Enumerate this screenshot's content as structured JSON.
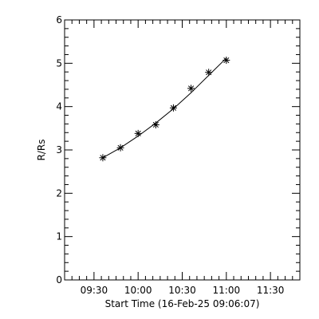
{
  "chart_data": {
    "type": "scatter",
    "xlabel": "Start Time (16-Feb-25 09:06:07)",
    "ylabel": "R/Rs",
    "x_unit": "minutes",
    "xlim": [
      "09:10",
      "11:50"
    ],
    "ylim": [
      0,
      6
    ],
    "x_ticks": [
      "09:30",
      "10:00",
      "10:30",
      "11:00",
      "11:30"
    ],
    "y_ticks": [
      0,
      1,
      2,
      3,
      4,
      5,
      6
    ],
    "grid": false,
    "marker": "asterisk",
    "series": [
      {
        "x": [
          "09:36",
          "09:48",
          "10:00",
          "10:12",
          "10:24",
          "10:36",
          "10:48",
          "11:00"
        ],
        "y": [
          2.82,
          3.05,
          3.38,
          3.58,
          3.97,
          4.42,
          4.79,
          5.07
        ]
      }
    ],
    "fit_line": {
      "x": [
        "09:36",
        "09:48",
        "10:00",
        "10:12",
        "10:24",
        "10:36",
        "10:48",
        "11:00"
      ],
      "y": [
        2.82,
        3.05,
        3.32,
        3.62,
        3.95,
        4.32,
        4.72,
        5.12
      ]
    }
  }
}
